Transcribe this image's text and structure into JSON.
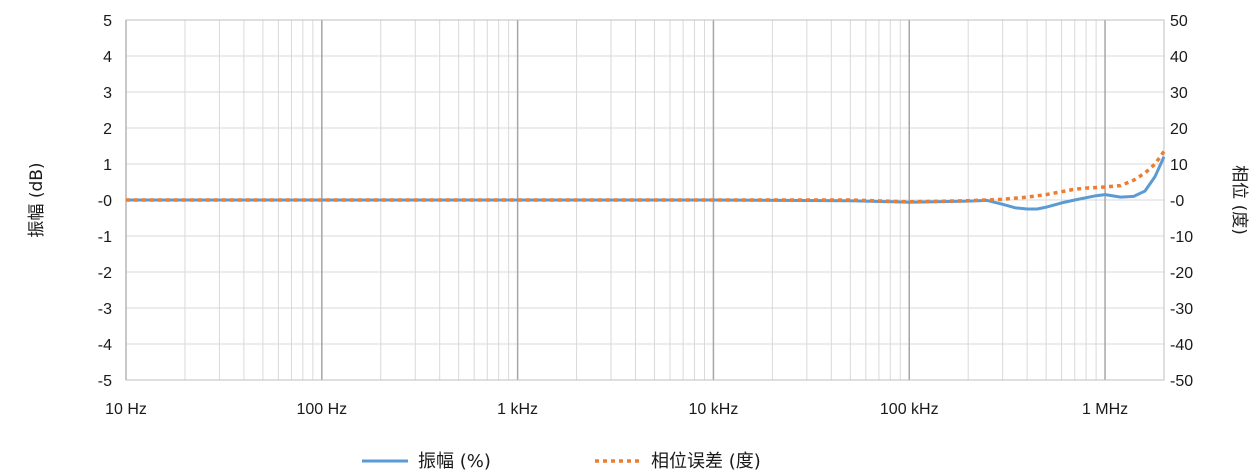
{
  "chart_data": {
    "type": "line",
    "x_scale": "log",
    "xlim": [
      10,
      2000000
    ],
    "x_tick_labels": [
      "10 Hz",
      "100 Hz",
      "1 kHz",
      "10 kHz",
      "100 kHz",
      "1 MHz"
    ],
    "x_tick_values": [
      10,
      100,
      1000,
      10000,
      100000,
      1000000
    ],
    "ylabel": "振幅 (dB)",
    "ylim": [
      -5,
      5
    ],
    "y_tick_labels": [
      "5",
      "4",
      "3",
      "2",
      "1",
      "-0",
      "-1",
      "-2",
      "-3",
      "-4",
      "-5"
    ],
    "y_tick_values": [
      5,
      4,
      3,
      2,
      1,
      0,
      -1,
      -2,
      -3,
      -4,
      -5
    ],
    "y2label": "相位 (度)",
    "y2lim": [
      -50,
      50
    ],
    "y2_tick_labels": [
      "50",
      "40",
      "30",
      "20",
      "10",
      "-0",
      "-10",
      "-20",
      "-30",
      "-40",
      "-50"
    ],
    "y2_tick_values": [
      50,
      40,
      30,
      20,
      10,
      0,
      -10,
      -20,
      -30,
      -40,
      -50
    ],
    "grid": true,
    "legend_position": "bottom",
    "series": [
      {
        "name": "振幅 (%)",
        "axis": "left",
        "style": "solid",
        "color": "#5b9bd5",
        "x": [
          10,
          100,
          1000,
          10000,
          50000,
          100000,
          200000,
          250000,
          300000,
          350000,
          400000,
          450000,
          500000,
          600000,
          700000,
          900000,
          1000000,
          1200000,
          1400000,
          1600000,
          1800000,
          2000000
        ],
        "y": [
          0,
          0,
          0,
          0,
          -0.02,
          -0.06,
          -0.03,
          -0.01,
          -0.12,
          -0.22,
          -0.25,
          -0.25,
          -0.2,
          -0.08,
          0.0,
          0.12,
          0.15,
          0.08,
          0.1,
          0.25,
          0.65,
          1.2
        ]
      },
      {
        "name": "相位误差 (度)",
        "axis": "right",
        "style": "dotted",
        "color": "#ed7d31",
        "x": [
          10,
          100,
          1000,
          10000,
          50000,
          100000,
          200000,
          300000,
          400000,
          500000,
          600000,
          700000,
          800000,
          1000000,
          1200000,
          1400000,
          1600000,
          1800000,
          2000000
        ],
        "y": [
          0,
          0,
          0,
          0,
          0,
          -0.5,
          -0.2,
          0.2,
          0.8,
          1.5,
          2.3,
          3.0,
          3.3,
          3.6,
          4.0,
          5.5,
          7.5,
          10.0,
          13.5
        ]
      }
    ]
  }
}
